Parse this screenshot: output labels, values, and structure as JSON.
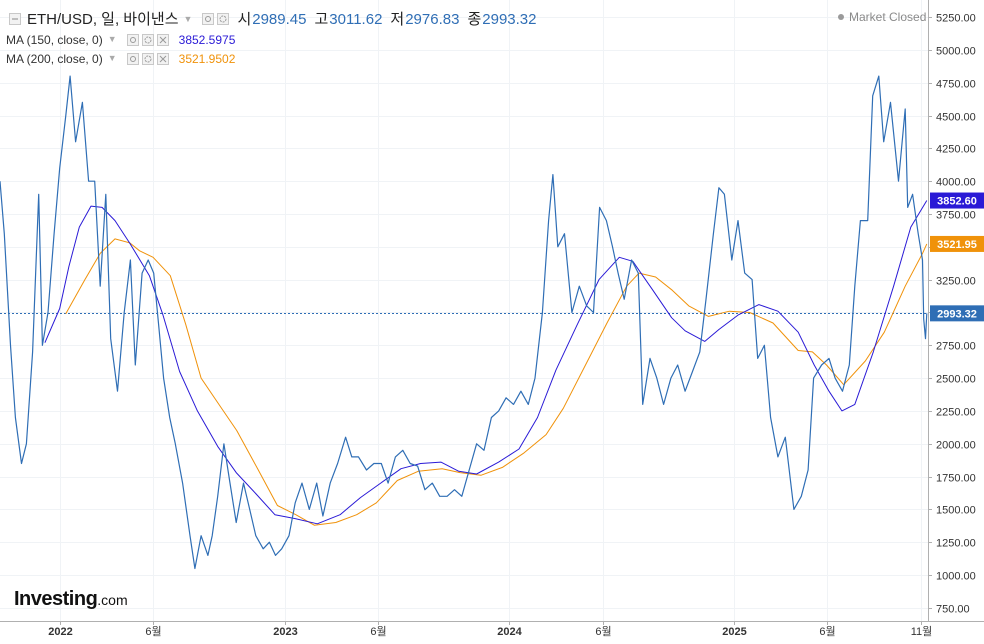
{
  "legend": {
    "symbol": "ETH/USD, 일, 바이낸스",
    "open_label": "시",
    "open": "2989.45",
    "high_label": "고",
    "high": "3011.62",
    "low_label": "저",
    "low": "2976.83",
    "close_label": "종",
    "close": "2993.32",
    "ma150": {
      "label": "MA (150, close, 0)",
      "value": "3852.5975",
      "color": "#2a1ad6"
    },
    "ma200": {
      "label": "MA (200, close, 0)",
      "value": "3521.9502",
      "color": "#f0920a"
    }
  },
  "status": "Market Closed",
  "logo": {
    "name": "Investing",
    "domain": ".com"
  },
  "chart_data": {
    "type": "line",
    "y_ticks": [
      750,
      1000,
      1250,
      1500,
      1750,
      2000,
      2250,
      2500,
      2750,
      3000,
      3250,
      3500,
      3750,
      4000,
      4250,
      4500,
      4750,
      5000,
      5250
    ],
    "y_tick_labels": [
      "750.00",
      "1000.00",
      "1250.00",
      "1500.00",
      "1750.00",
      "2000.00",
      "2250.00",
      "2500.00",
      "2750.00",
      "3000.00",
      "3250.00",
      "3500.00",
      "3750.00",
      "4000.00",
      "4250.00",
      "4500.00",
      "4750.00",
      "5000.00",
      "5250.00"
    ],
    "ylim": [
      650,
      5380
    ],
    "x_ticks": [
      {
        "label": "2022",
        "date": "2022-01-01"
      },
      {
        "label": "6월",
        "date": "2022-06-01"
      },
      {
        "label": "2023",
        "date": "2023-01-01"
      },
      {
        "label": "6월",
        "date": "2023-06-01"
      },
      {
        "label": "2024",
        "date": "2024-01-01"
      },
      {
        "label": "6월",
        "date": "2024-06-01"
      },
      {
        "label": "2025",
        "date": "2025-01-01"
      },
      {
        "label": "6월",
        "date": "2025-06-01"
      },
      {
        "label": "11월",
        "date": "2025-11-01"
      }
    ],
    "xlim": [
      "2021-09-25",
      "2025-11-12"
    ],
    "grid": true,
    "last_price": 2993.32,
    "series": [
      {
        "name": "ETH/USD",
        "color": "#2f6eb5",
        "points": [
          [
            "2021-09-25",
            4000
          ],
          [
            "2021-10-02",
            3600
          ],
          [
            "2021-10-12",
            2750
          ],
          [
            "2021-10-20",
            2200
          ],
          [
            "2021-10-30",
            1850
          ],
          [
            "2021-11-07",
            2000
          ],
          [
            "2021-11-17",
            2700
          ],
          [
            "2021-11-27",
            3900
          ],
          [
            "2021-12-03",
            2750
          ],
          [
            "2021-12-12",
            3000
          ],
          [
            "2021-12-22",
            3600
          ],
          [
            "2021-12-31",
            4100
          ],
          [
            "2022-01-10",
            4500
          ],
          [
            "2022-01-17",
            4800
          ],
          [
            "2022-01-26",
            4300
          ],
          [
            "2022-02-06",
            4600
          ],
          [
            "2022-02-16",
            4000
          ],
          [
            "2022-02-26",
            4000
          ],
          [
            "2022-03-07",
            3200
          ],
          [
            "2022-03-16",
            3900
          ],
          [
            "2022-03-24",
            2800
          ],
          [
            "2022-04-04",
            2400
          ],
          [
            "2022-04-15",
            3000
          ],
          [
            "2022-04-25",
            3400
          ],
          [
            "2022-05-03",
            2600
          ],
          [
            "2022-05-14",
            3300
          ],
          [
            "2022-05-24",
            3400
          ],
          [
            "2022-06-02",
            3300
          ],
          [
            "2022-06-10",
            2900
          ],
          [
            "2022-06-18",
            2500
          ],
          [
            "2022-06-28",
            2200
          ],
          [
            "2022-07-07",
            2000
          ],
          [
            "2022-07-19",
            1700
          ],
          [
            "2022-07-31",
            1300
          ],
          [
            "2022-08-08",
            1050
          ],
          [
            "2022-08-18",
            1300
          ],
          [
            "2022-08-29",
            1150
          ],
          [
            "2022-09-05",
            1300
          ],
          [
            "2022-09-14",
            1600
          ],
          [
            "2022-09-24",
            2000
          ],
          [
            "2022-10-04",
            1700
          ],
          [
            "2022-10-14",
            1400
          ],
          [
            "2022-10-26",
            1700
          ],
          [
            "2022-11-05",
            1500
          ],
          [
            "2022-11-15",
            1300
          ],
          [
            "2022-11-27",
            1200
          ],
          [
            "2022-12-07",
            1250
          ],
          [
            "2022-12-17",
            1150
          ],
          [
            "2022-12-27",
            1200
          ],
          [
            "2023-01-08",
            1300
          ],
          [
            "2023-01-18",
            1550
          ],
          [
            "2023-01-29",
            1700
          ],
          [
            "2023-02-10",
            1500
          ],
          [
            "2023-02-22",
            1700
          ],
          [
            "2023-03-04",
            1450
          ],
          [
            "2023-03-16",
            1700
          ],
          [
            "2023-03-28",
            1850
          ],
          [
            "2023-04-10",
            2050
          ],
          [
            "2023-04-20",
            1900
          ],
          [
            "2023-05-01",
            1900
          ],
          [
            "2023-05-14",
            1800
          ],
          [
            "2023-05-26",
            1850
          ],
          [
            "2023-06-07",
            1850
          ],
          [
            "2023-06-18",
            1700
          ],
          [
            "2023-06-30",
            1900
          ],
          [
            "2023-07-12",
            1950
          ],
          [
            "2023-07-24",
            1850
          ],
          [
            "2023-08-05",
            1830
          ],
          [
            "2023-08-17",
            1650
          ],
          [
            "2023-08-29",
            1700
          ],
          [
            "2023-09-10",
            1600
          ],
          [
            "2023-09-22",
            1600
          ],
          [
            "2023-10-04",
            1650
          ],
          [
            "2023-10-16",
            1600
          ],
          [
            "2023-10-28",
            1800
          ],
          [
            "2023-11-09",
            2000
          ],
          [
            "2023-11-21",
            1950
          ],
          [
            "2023-12-03",
            2200
          ],
          [
            "2023-12-15",
            2250
          ],
          [
            "2023-12-27",
            2350
          ],
          [
            "2024-01-08",
            2300
          ],
          [
            "2024-01-20",
            2400
          ],
          [
            "2024-02-01",
            2300
          ],
          [
            "2024-02-12",
            2500
          ],
          [
            "2024-02-24",
            3000
          ],
          [
            "2024-03-05",
            3700
          ],
          [
            "2024-03-12",
            4050
          ],
          [
            "2024-03-20",
            3500
          ],
          [
            "2024-03-31",
            3600
          ],
          [
            "2024-04-12",
            3000
          ],
          [
            "2024-04-24",
            3200
          ],
          [
            "2024-05-06",
            3050
          ],
          [
            "2024-05-17",
            3000
          ],
          [
            "2024-05-27",
            3800
          ],
          [
            "2024-06-07",
            3700
          ],
          [
            "2024-06-17",
            3500
          ],
          [
            "2024-06-26",
            3300
          ],
          [
            "2024-07-06",
            3100
          ],
          [
            "2024-07-18",
            3400
          ],
          [
            "2024-07-29",
            3300
          ],
          [
            "2024-08-05",
            2300
          ],
          [
            "2024-08-17",
            2650
          ],
          [
            "2024-08-28",
            2500
          ],
          [
            "2024-09-08",
            2300
          ],
          [
            "2024-09-20",
            2500
          ],
          [
            "2024-10-01",
            2600
          ],
          [
            "2024-10-13",
            2400
          ],
          [
            "2024-10-25",
            2550
          ],
          [
            "2024-11-06",
            2700
          ],
          [
            "2024-11-16",
            3100
          ],
          [
            "2024-11-28",
            3600
          ],
          [
            "2024-12-07",
            3950
          ],
          [
            "2024-12-16",
            3900
          ],
          [
            "2024-12-28",
            3400
          ],
          [
            "2025-01-07",
            3700
          ],
          [
            "2025-01-18",
            3300
          ],
          [
            "2025-01-30",
            3250
          ],
          [
            "2025-02-08",
            2650
          ],
          [
            "2025-02-19",
            2750
          ],
          [
            "2025-03-01",
            2200
          ],
          [
            "2025-03-13",
            1900
          ],
          [
            "2025-03-25",
            2050
          ],
          [
            "2025-04-08",
            1500
          ],
          [
            "2025-04-20",
            1600
          ],
          [
            "2025-05-01",
            1800
          ],
          [
            "2025-05-10",
            2500
          ],
          [
            "2025-05-23",
            2600
          ],
          [
            "2025-06-04",
            2650
          ],
          [
            "2025-06-14",
            2500
          ],
          [
            "2025-06-26",
            2400
          ],
          [
            "2025-07-07",
            2600
          ],
          [
            "2025-07-16",
            3200
          ],
          [
            "2025-07-25",
            3700
          ],
          [
            "2025-08-06",
            3700
          ],
          [
            "2025-08-14",
            4650
          ],
          [
            "2025-08-24",
            4800
          ],
          [
            "2025-09-01",
            4300
          ],
          [
            "2025-09-12",
            4600
          ],
          [
            "2025-09-25",
            4000
          ],
          [
            "2025-10-06",
            4550
          ],
          [
            "2025-10-10",
            3800
          ],
          [
            "2025-10-18",
            3900
          ],
          [
            "2025-10-27",
            3600
          ],
          [
            "2025-11-03",
            3400
          ],
          [
            "2025-11-05",
            2950
          ],
          [
            "2025-11-08",
            2800
          ],
          [
            "2025-11-10",
            2993.32
          ]
        ]
      },
      {
        "name": "MA (150, close, 0)",
        "color": "#2a1ad6",
        "points": [
          [
            "2021-12-07",
            2770
          ],
          [
            "2021-12-31",
            3030
          ],
          [
            "2022-01-15",
            3350
          ],
          [
            "2022-02-01",
            3650
          ],
          [
            "2022-02-20",
            3810
          ],
          [
            "2022-03-10",
            3800
          ],
          [
            "2022-03-31",
            3700
          ],
          [
            "2022-04-25",
            3520
          ],
          [
            "2022-05-26",
            3280
          ],
          [
            "2022-06-17",
            2980
          ],
          [
            "2022-07-14",
            2550
          ],
          [
            "2022-08-12",
            2250
          ],
          [
            "2022-09-14",
            1980
          ],
          [
            "2022-10-14",
            1780
          ],
          [
            "2022-11-15",
            1620
          ],
          [
            "2022-12-16",
            1460
          ],
          [
            "2023-01-18",
            1430
          ],
          [
            "2023-02-23",
            1390
          ],
          [
            "2023-04-01",
            1460
          ],
          [
            "2023-05-04",
            1590
          ],
          [
            "2023-06-06",
            1700
          ],
          [
            "2023-07-09",
            1810
          ],
          [
            "2023-08-10",
            1850
          ],
          [
            "2023-09-12",
            1860
          ],
          [
            "2023-10-11",
            1790
          ],
          [
            "2023-11-09",
            1770
          ],
          [
            "2023-12-15",
            1860
          ],
          [
            "2024-01-17",
            1960
          ],
          [
            "2024-02-16",
            2200
          ],
          [
            "2024-03-17",
            2560
          ],
          [
            "2024-04-20",
            2900
          ],
          [
            "2024-05-26",
            3250
          ],
          [
            "2024-06-28",
            3420
          ],
          [
            "2024-07-20",
            3390
          ],
          [
            "2024-08-20",
            3180
          ],
          [
            "2024-09-21",
            2960
          ],
          [
            "2024-10-13",
            2860
          ],
          [
            "2024-11-14",
            2780
          ],
          [
            "2024-12-07",
            2870
          ],
          [
            "2025-01-07",
            2980
          ],
          [
            "2025-02-10",
            3060
          ],
          [
            "2025-03-13",
            3010
          ],
          [
            "2025-04-15",
            2850
          ],
          [
            "2025-05-11",
            2600
          ],
          [
            "2025-06-04",
            2400
          ],
          [
            "2025-06-25",
            2250
          ],
          [
            "2025-07-16",
            2300
          ],
          [
            "2025-08-15",
            2700
          ],
          [
            "2025-09-17",
            3200
          ],
          [
            "2025-10-15",
            3650
          ],
          [
            "2025-11-10",
            3852.6
          ]
        ]
      },
      {
        "name": "MA (200, close, 0)",
        "color": "#f0920a",
        "points": [
          [
            "2022-01-10",
            2990
          ],
          [
            "2022-02-10",
            3250
          ],
          [
            "2022-03-07",
            3450
          ],
          [
            "2022-03-31",
            3560
          ],
          [
            "2022-04-24",
            3530
          ],
          [
            "2022-05-10",
            3470
          ],
          [
            "2022-06-01",
            3420
          ],
          [
            "2022-06-29",
            3280
          ],
          [
            "2022-07-24",
            2910
          ],
          [
            "2022-08-18",
            2500
          ],
          [
            "2022-09-16",
            2300
          ],
          [
            "2022-10-15",
            2100
          ],
          [
            "2022-11-19",
            1800
          ],
          [
            "2022-12-20",
            1530
          ],
          [
            "2023-01-19",
            1460
          ],
          [
            "2023-02-18",
            1380
          ],
          [
            "2023-03-25",
            1400
          ],
          [
            "2023-04-28",
            1460
          ],
          [
            "2023-05-30",
            1550
          ],
          [
            "2023-07-03",
            1720
          ],
          [
            "2023-08-06",
            1790
          ],
          [
            "2023-09-14",
            1810
          ],
          [
            "2023-10-13",
            1780
          ],
          [
            "2023-11-16",
            1760
          ],
          [
            "2023-12-21",
            1820
          ],
          [
            "2024-01-25",
            1930
          ],
          [
            "2024-03-01",
            2070
          ],
          [
            "2024-03-29",
            2270
          ],
          [
            "2024-05-04",
            2600
          ],
          [
            "2024-06-08",
            2920
          ],
          [
            "2024-07-10",
            3200
          ],
          [
            "2024-07-30",
            3300
          ],
          [
            "2024-08-26",
            3270
          ],
          [
            "2024-09-22",
            3170
          ],
          [
            "2024-10-19",
            3050
          ],
          [
            "2024-11-20",
            2970
          ],
          [
            "2024-12-24",
            3010
          ],
          [
            "2025-01-26",
            3000
          ],
          [
            "2025-03-05",
            2920
          ],
          [
            "2025-04-15",
            2710
          ],
          [
            "2025-05-08",
            2700
          ],
          [
            "2025-05-31",
            2600
          ],
          [
            "2025-06-28",
            2450
          ],
          [
            "2025-08-02",
            2630
          ],
          [
            "2025-09-02",
            2850
          ],
          [
            "2025-10-06",
            3200
          ],
          [
            "2025-11-03",
            3450
          ],
          [
            "2025-11-10",
            3521.95
          ]
        ]
      }
    ]
  }
}
